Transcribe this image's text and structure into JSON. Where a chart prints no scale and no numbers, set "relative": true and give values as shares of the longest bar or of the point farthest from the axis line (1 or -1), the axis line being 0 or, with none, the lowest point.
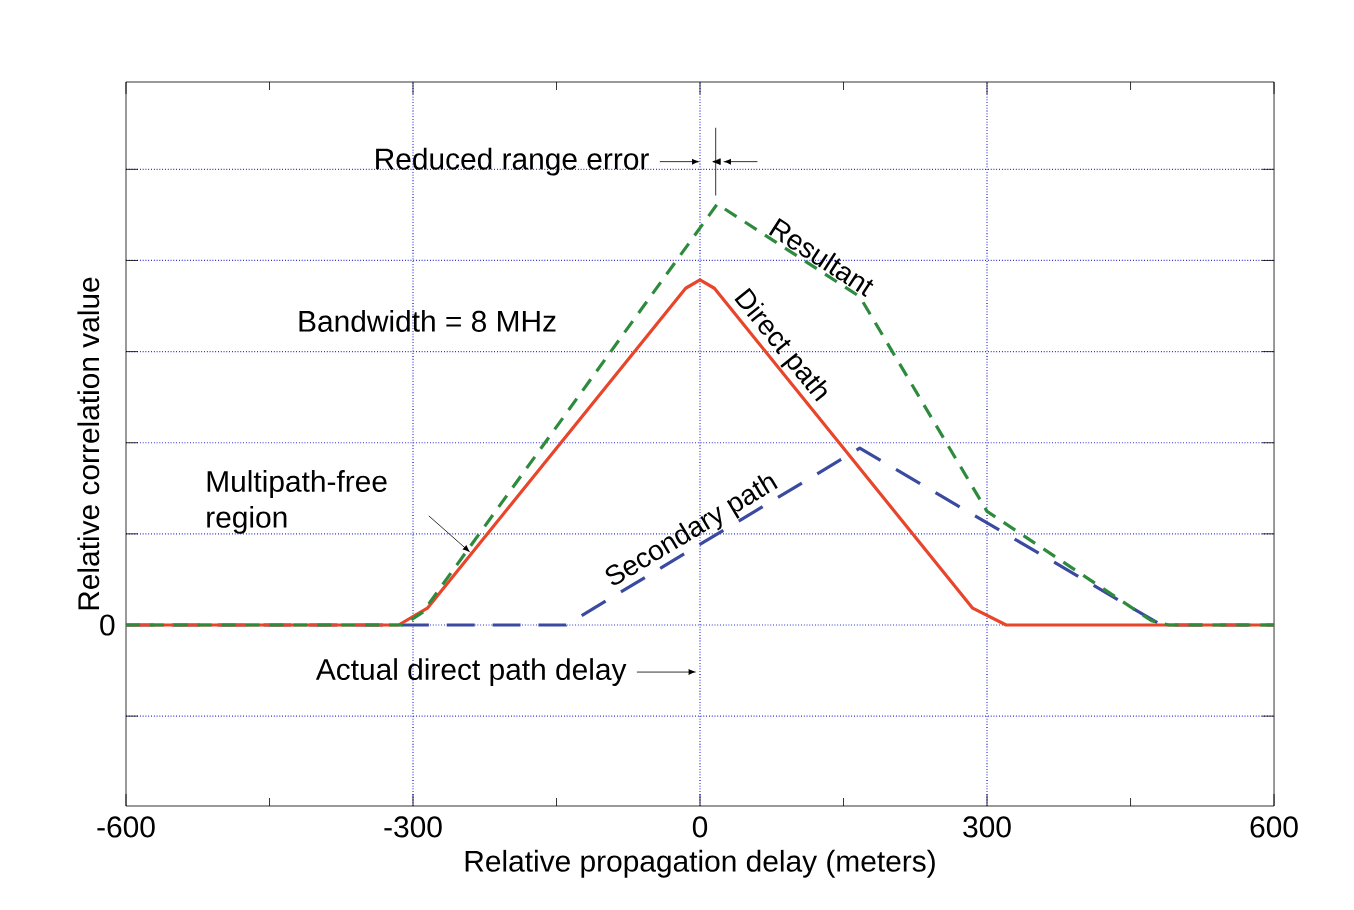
{
  "chart_data": {
    "type": "line",
    "relative": true,
    "xlabel": "Relative propagation delay (meters)",
    "ylabel": "Relative correlation value",
    "xlim": [
      -600,
      600
    ],
    "xticks": [
      -600,
      -300,
      0,
      300,
      600
    ],
    "grid": true,
    "series": [
      {
        "name": "Resultant",
        "color": "#2e8b3e",
        "line_style": "dashed",
        "x": [
          -600,
          -310,
          -290,
          18,
          167,
          300,
          472,
          490,
          600
        ],
        "values": [
          0,
          0,
          0.03,
          1.0,
          0.78,
          0.27,
          0.01,
          0,
          0
        ]
      },
      {
        "name": "Direct path",
        "color": "#e8452a",
        "line_style": "solid",
        "x": [
          -600,
          -315,
          -285,
          -15,
          0,
          15,
          285,
          320,
          600
        ],
        "values": [
          0,
          0,
          0.04,
          0.8,
          0.82,
          0.8,
          0.04,
          0,
          0
        ]
      },
      {
        "name": "Secondary path",
        "color": "#3a4aa0",
        "line_style": "dashed",
        "x": [
          -600,
          -140,
          167,
          482,
          600
        ],
        "values": [
          0,
          0,
          0.42,
          0,
          0
        ]
      }
    ],
    "annotations": [
      "0",
      "Bandwidth = 8 MHz",
      "Reduced range error",
      "Multipath-free region",
      "Actual direct path delay"
    ]
  }
}
